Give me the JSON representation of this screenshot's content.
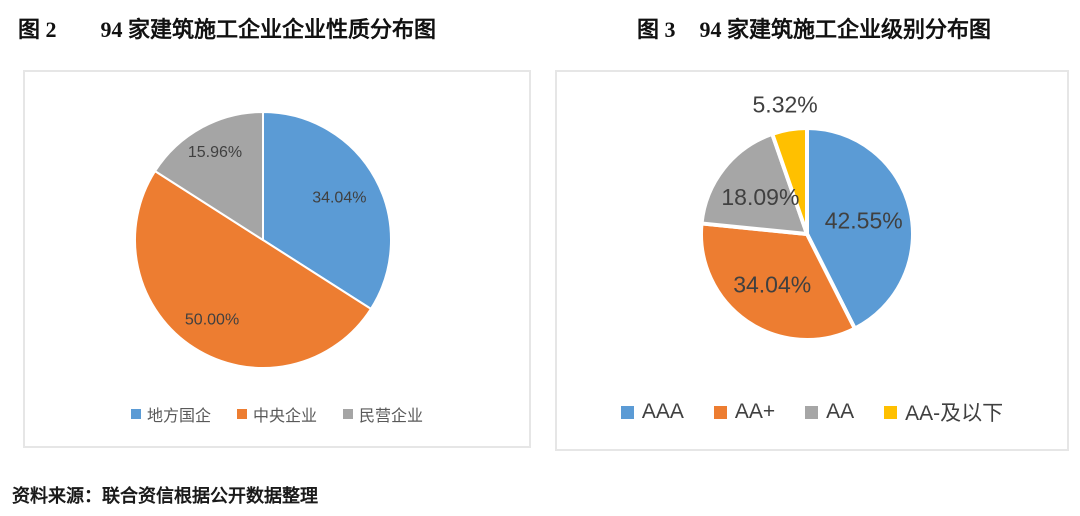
{
  "page": {
    "source_note": "资料来源：联合资信根据公开数据整理"
  },
  "figures": [
    {
      "fig_label": "图 2",
      "title": "94 家建筑施工企业企业性质分布图"
    },
    {
      "fig_label": "图 3",
      "title": "94 家建筑施工企业级别分布图"
    }
  ],
  "chart_data": [
    {
      "type": "pie",
      "title": "94 家建筑施工企业企业性质分布图",
      "categories": [
        "地方国企",
        "中央企业",
        "民营企业"
      ],
      "values": [
        34.04,
        50.0,
        15.96
      ],
      "labels": [
        "34.04%",
        "50.00%",
        "15.96%"
      ],
      "colors": [
        "#5B9BD5",
        "#ED7D31",
        "#A5A5A5"
      ],
      "label_color": "#404040",
      "legend_position": "bottom",
      "start_angle_deg": -90,
      "direction": "clockwise",
      "separator_width": 2,
      "label_r": [
        0.68,
        0.74,
        0.78
      ]
    },
    {
      "type": "pie",
      "title": "94 家建筑施工企业级别分布图",
      "categories": [
        "AAA",
        "AA+",
        "AA",
        "AA-及以下"
      ],
      "values": [
        42.55,
        34.04,
        18.09,
        5.32
      ],
      "labels": [
        "42.55%",
        "34.04%",
        "18.09%",
        "5.32%"
      ],
      "colors": [
        "#5B9BD5",
        "#ED7D31",
        "#A6A6A6",
        "#FFC000"
      ],
      "label_color": "#404040",
      "legend_position": "bottom",
      "start_angle_deg": -90,
      "direction": "clockwise",
      "separator_width": 4,
      "label_r": [
        0.55,
        0.58,
        0.56,
        1.24
      ]
    }
  ]
}
